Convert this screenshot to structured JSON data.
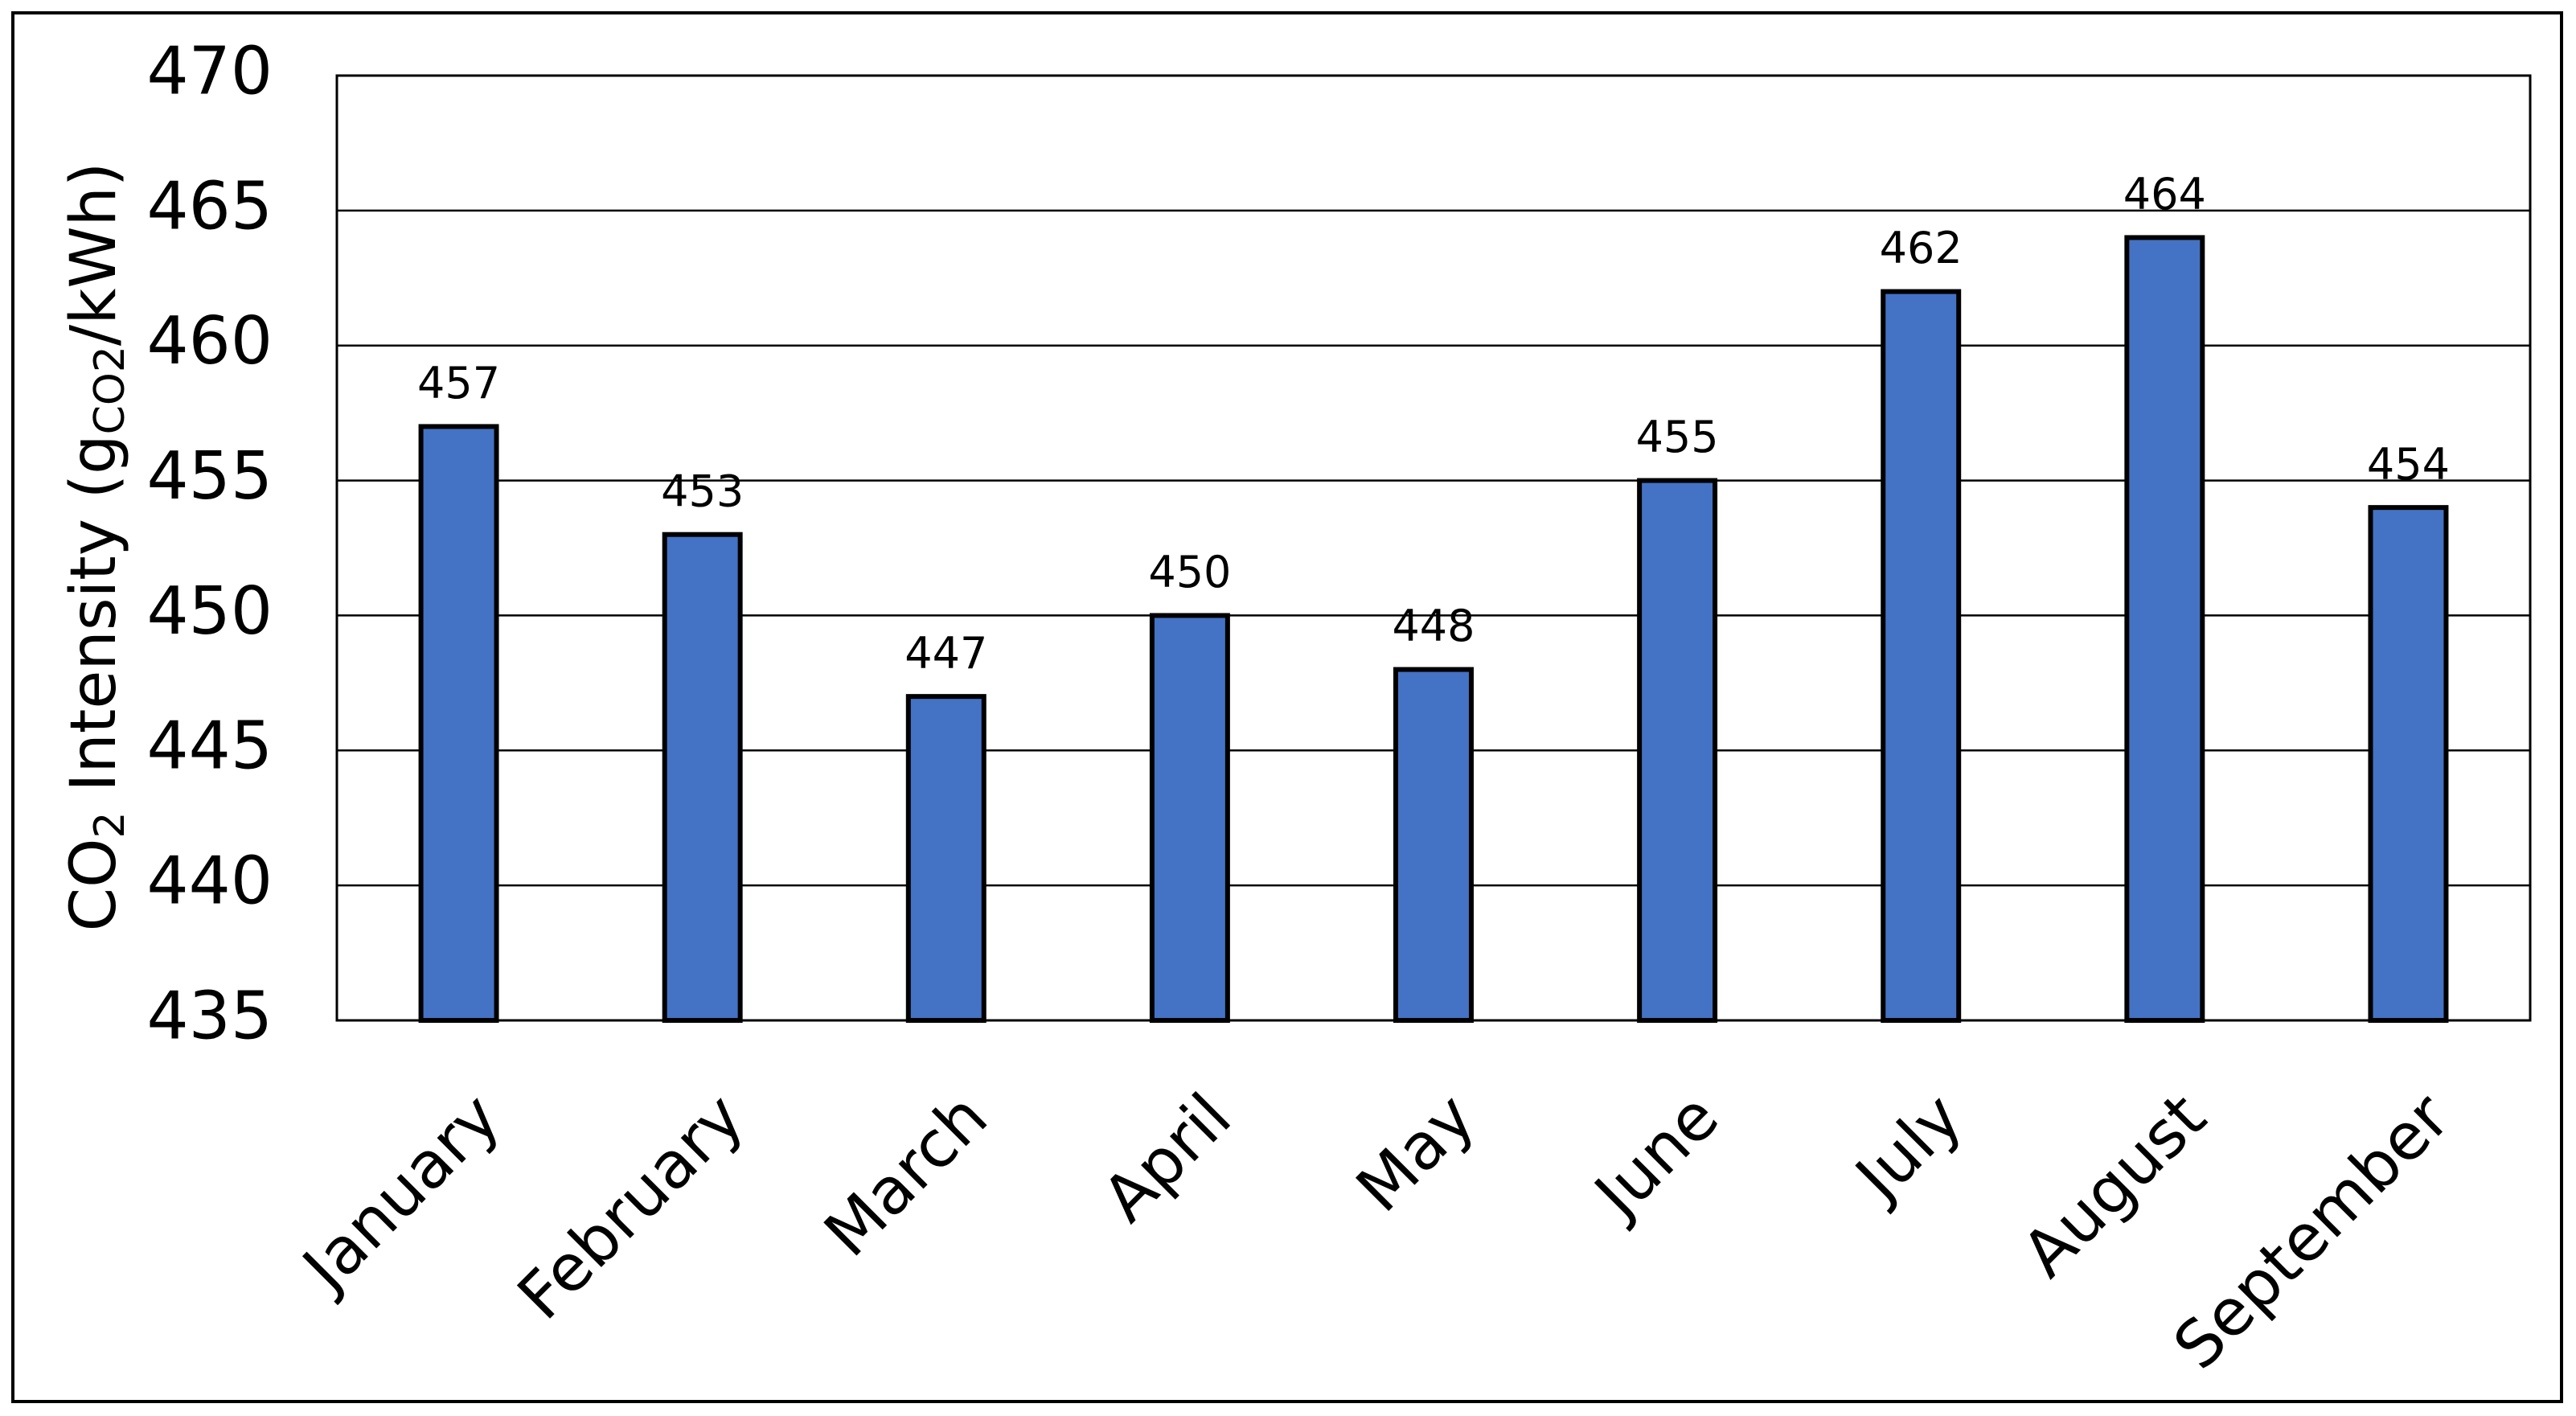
{
  "chart_data": {
    "type": "bar",
    "y_label": [
      {
        "text": "CO"
      },
      {
        "text": "2",
        "sub": true
      },
      {
        "text": " Intensity (g"
      },
      {
        "text": "CO2",
        "sub": true
      },
      {
        "text": "/kWh)"
      }
    ],
    "categories": [
      "January",
      "February",
      "March",
      "April",
      "May",
      "June",
      "July",
      "August",
      "September"
    ],
    "values": [
      457,
      453,
      447,
      450,
      448,
      455,
      462,
      464,
      454
    ],
    "color": "#4472c4",
    "ylim": [
      435,
      470
    ],
    "yticks": [
      435,
      440,
      445,
      450,
      455,
      460,
      465,
      470
    ],
    "grid": true
  }
}
